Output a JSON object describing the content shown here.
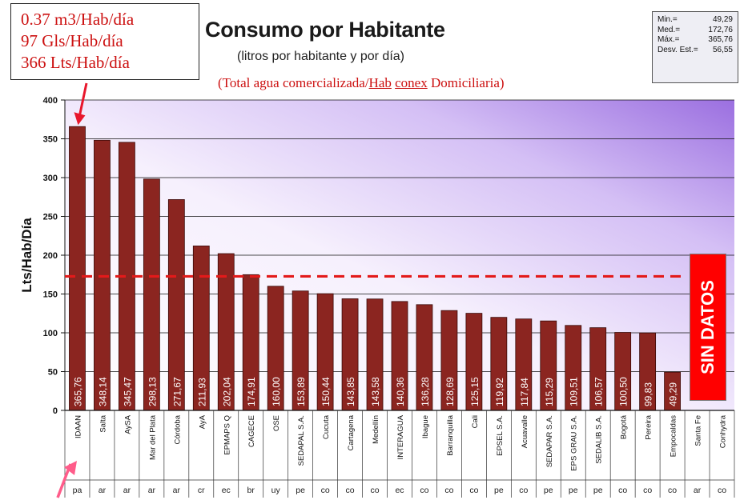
{
  "header": {
    "title": "Consumo por Habitante",
    "subtitle": "(litros por habitante y por día)",
    "note_prefix": "(Total agua comercializada/",
    "note_hab": "Hab",
    "note_space": " ",
    "note_conex": "conex",
    "note_suffix": " Domiciliaria)"
  },
  "conversion_box": {
    "line1": "0.37 m3/Hab/día",
    "line2": "97 Gls/Hab/día",
    "line3": "366 Lts/Hab/día"
  },
  "stats": {
    "min_label": "Min.=",
    "min_value": "49,29",
    "med_label": "Med.=",
    "med_value": "172,76",
    "max_label": "Máx.=",
    "max_value": "365,76",
    "sd_label": "Desv. Est.=",
    "sd_value": "56,55"
  },
  "sin_datos_label": "SIN DATOS",
  "colors": {
    "bar": "#8b2520",
    "bar_edge": "#3a0a08",
    "mean_line": "#e31a1a",
    "arrow": "#e8172c",
    "arrow_pink": "#ff5c8a",
    "bg_start": "#ffffff",
    "bg_end": "#9b6fe0"
  },
  "chart_data": {
    "type": "bar",
    "title": "Consumo por Habitante",
    "subtitle": "(litros por habitante y por día)",
    "ylabel": "Lts/Hab/Día",
    "xlabel": "",
    "ylim": [
      0,
      400
    ],
    "yticks": [
      0,
      50,
      100,
      150,
      200,
      250,
      300,
      350,
      400
    ],
    "mean_line": 172.76,
    "categories": [
      "IDAAN",
      "Salta",
      "AySA",
      "Mar del Plata",
      "Córdoba",
      "AyA",
      "EPMAPS Q",
      "CAGECE",
      "OSE",
      "SEDAPAL S.A.",
      "Cucuta",
      "Cartagena",
      "Medellín",
      "INTERAGUA",
      "Ibague",
      "Barranquilla",
      "Cali",
      "EPSEL S.A.",
      "Acuavalle",
      "SEDAPAR S.A.",
      "EPS GRAU S.A.",
      "SEDALIB S.A.",
      "Bogotá",
      "Pereira",
      "Empocaldas",
      "Santa Fe",
      "Conhydra"
    ],
    "countries": [
      "pa",
      "ar",
      "ar",
      "ar",
      "ar",
      "cr",
      "ec",
      "br",
      "uy",
      "pe",
      "co",
      "co",
      "co",
      "ec",
      "co",
      "co",
      "co",
      "pe",
      "co",
      "pe",
      "pe",
      "pe",
      "co",
      "co",
      "co",
      "ar",
      "co"
    ],
    "values": [
      365.76,
      348.14,
      345.47,
      298.13,
      271.67,
      211.93,
      202.04,
      174.91,
      160.0,
      153.89,
      150.44,
      143.85,
      143.58,
      140.36,
      136.28,
      128.69,
      125.15,
      119.92,
      117.84,
      115.29,
      109.51,
      106.57,
      100.5,
      99.83,
      49.29,
      null,
      null
    ],
    "value_labels": [
      "365,76",
      "348,14",
      "345,47",
      "298,13",
      "271,67",
      "211,93",
      "202,04",
      "174,91",
      "160,00",
      "153,89",
      "150,44",
      "143,85",
      "143,58",
      "140,36",
      "136,28",
      "128,69",
      "125,15",
      "119,92",
      "117,84",
      "115,29",
      "109,51",
      "106,57",
      "100,50",
      "99,83",
      "49,29",
      "",
      ""
    ]
  }
}
